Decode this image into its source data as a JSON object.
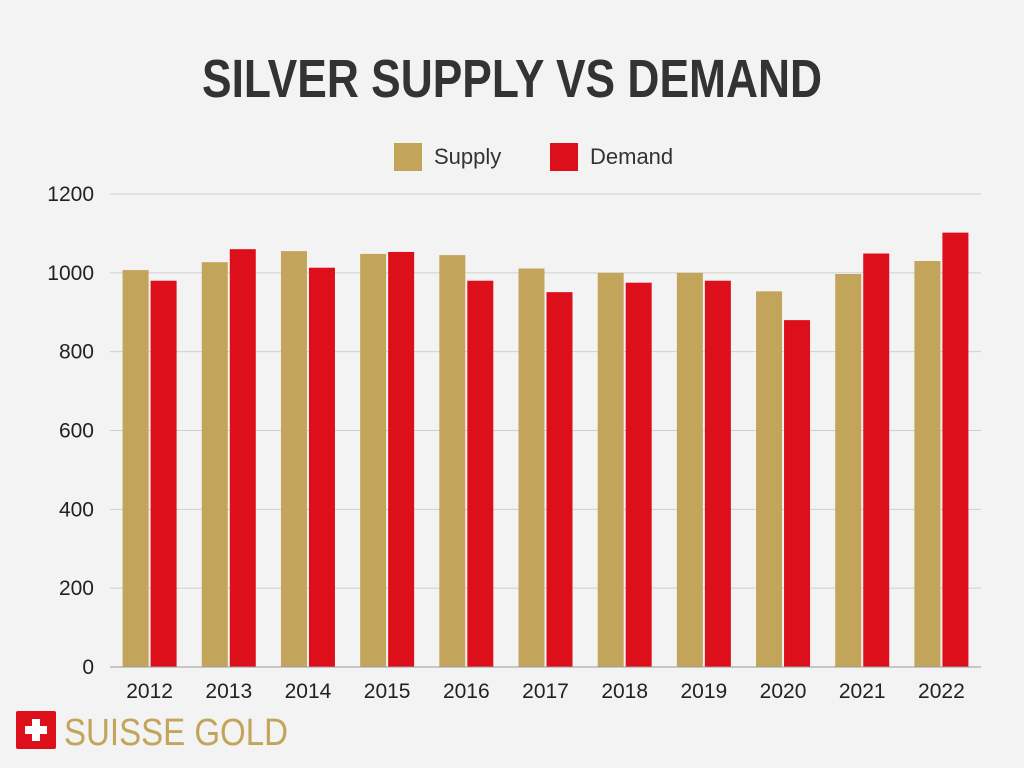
{
  "chart_data": {
    "type": "bar",
    "title": "SILVER SUPPLY VS DEMAND",
    "xlabel": "",
    "ylabel": "",
    "categories": [
      "2012",
      "2013",
      "2014",
      "2015",
      "2016",
      "2017",
      "2018",
      "2019",
      "2020",
      "2021",
      "2022"
    ],
    "series": [
      {
        "name": "Supply",
        "color": "#c2a55a",
        "values": [
          1007,
          1027,
          1055,
          1048,
          1045,
          1011,
          1000,
          1000,
          953,
          997,
          1030
        ]
      },
      {
        "name": "Demand",
        "color": "#dc0f1a",
        "values": [
          980,
          1060,
          1013,
          1053,
          980,
          951,
          975,
          980,
          880,
          1049,
          1102
        ]
      }
    ],
    "ylim": [
      0,
      1200
    ],
    "yticks": [
      0,
      200,
      400,
      600,
      800,
      1000,
      1200
    ],
    "grid": true,
    "legend_position": "top-center"
  },
  "brand": {
    "name": "SUISSE GOLD",
    "flag_color": "#dc0f1a",
    "text_color": "#c2a55a"
  }
}
